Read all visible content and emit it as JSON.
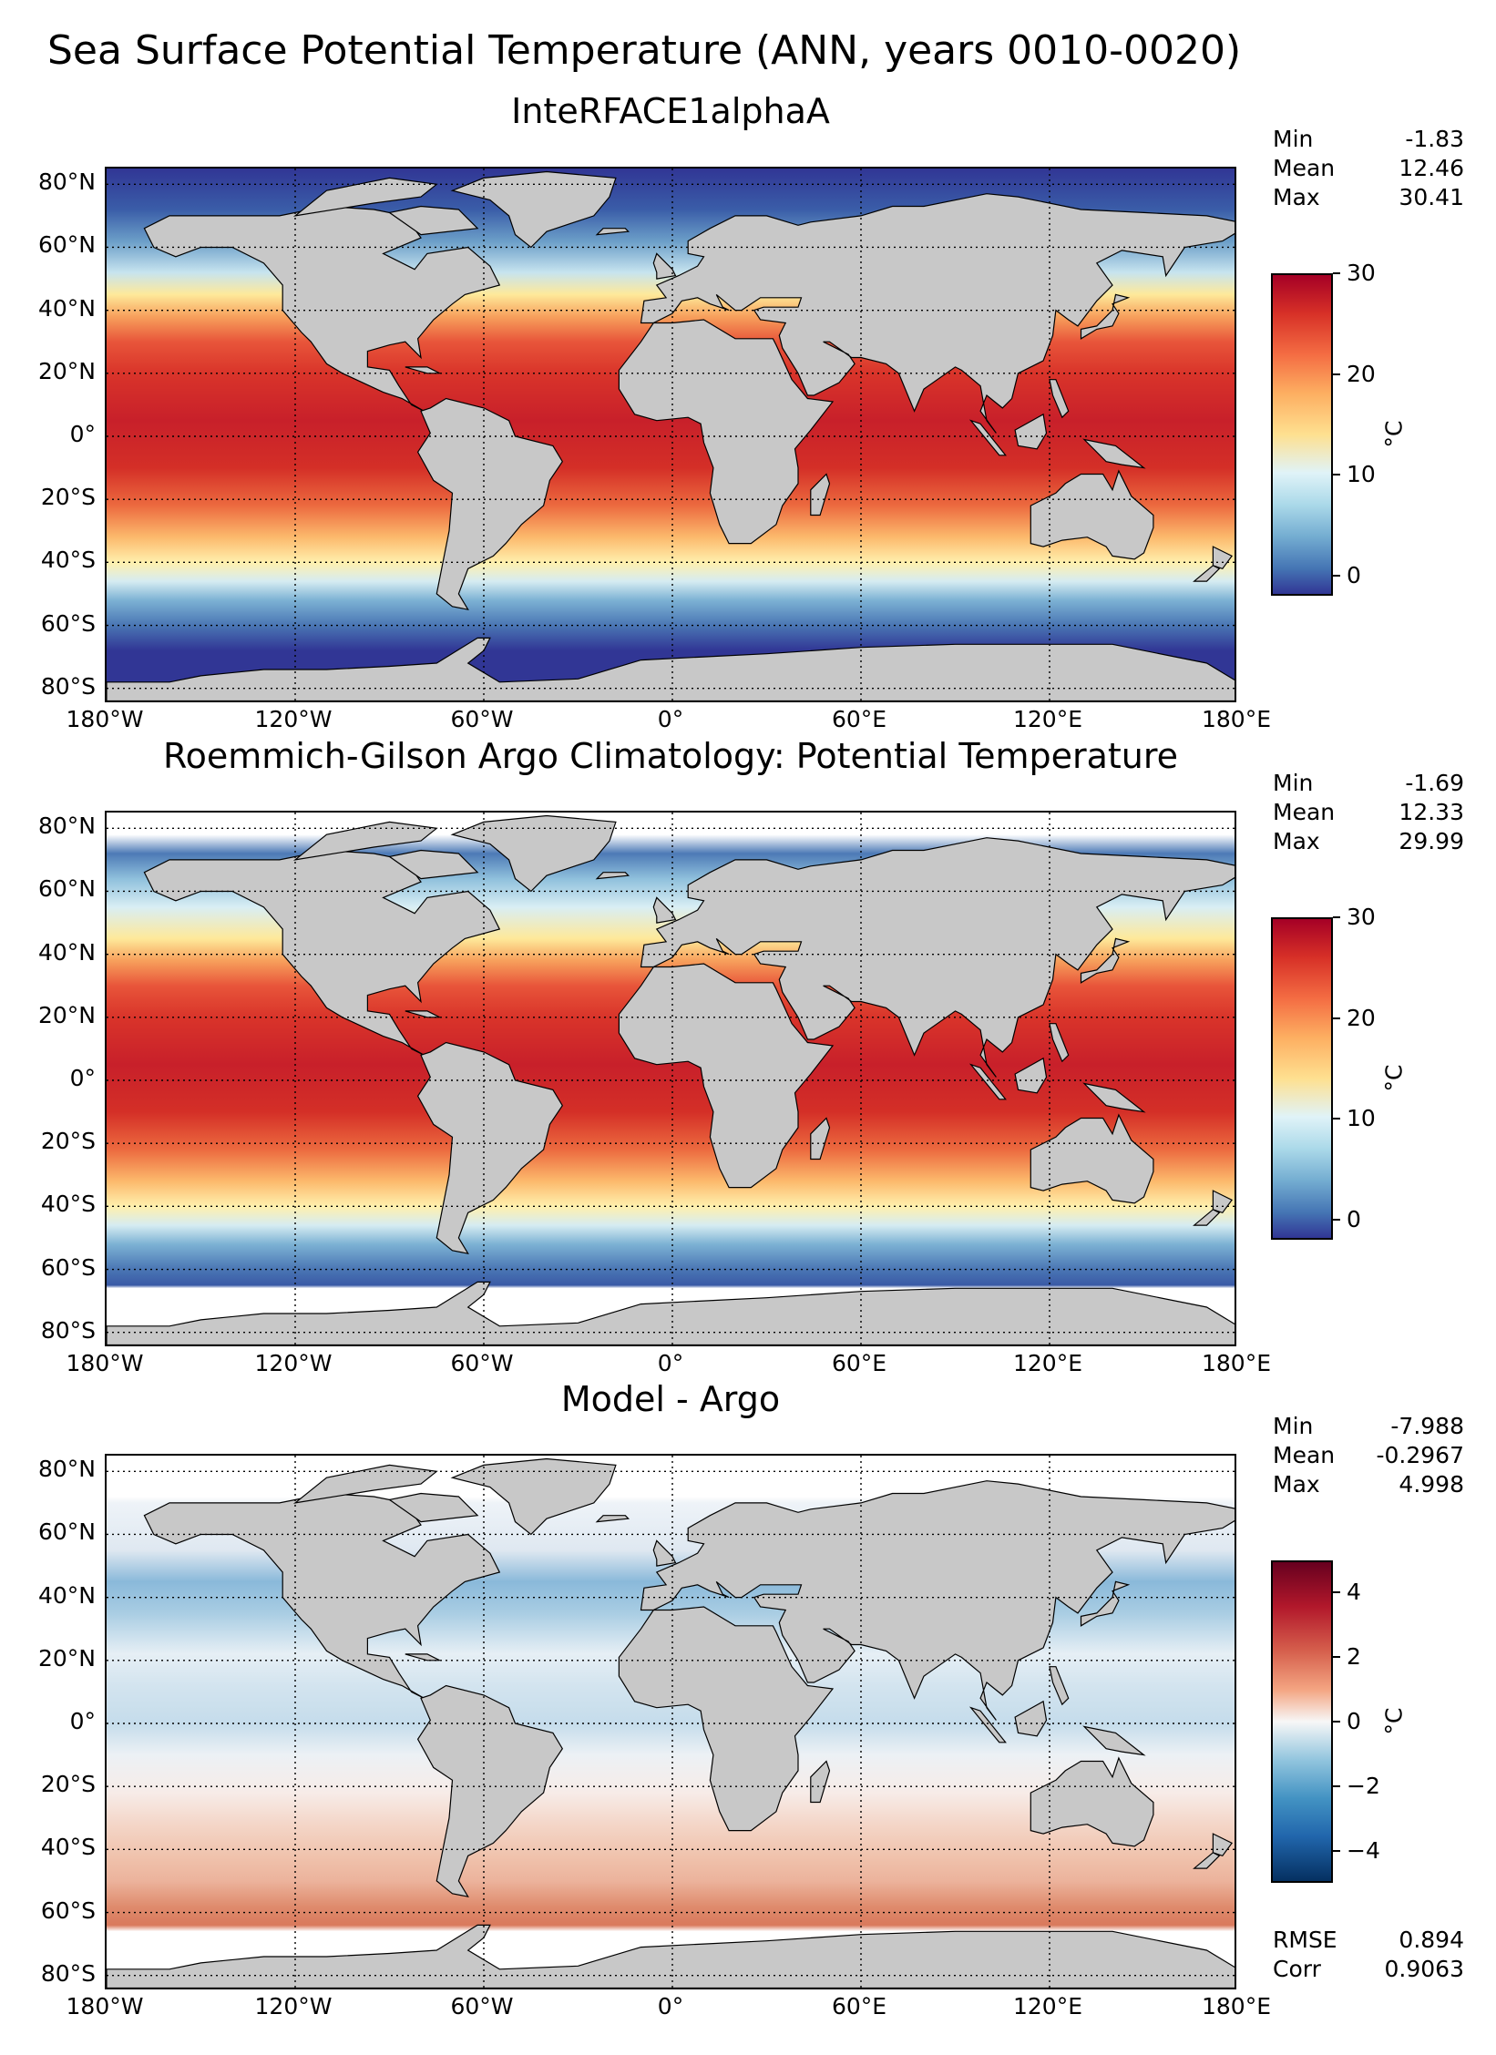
{
  "title": "Sea Surface Potential Temperature (ANN, years 0010-0020)",
  "lat_labels": [
    "80°N",
    "60°N",
    "40°N",
    "20°N",
    "0°",
    "20°S",
    "40°S",
    "60°S",
    "80°S"
  ],
  "lon_labels": [
    "180°W",
    "120°W",
    "60°W",
    "0°",
    "60°E",
    "120°E",
    "180°E"
  ],
  "colors": {
    "land": "#c8c8c8",
    "missing": "#ffffff",
    "grid": "#000000"
  },
  "panels": [
    {
      "subtitle": "InteRFACE1alphaA",
      "stats": [
        {
          "label": "Min",
          "value": "-1.83"
        },
        {
          "label": "Mean",
          "value": "12.46"
        },
        {
          "label": "Max",
          "value": "30.41"
        }
      ],
      "colorbar": {
        "ticks": [
          "30",
          "20",
          "10",
          "0"
        ],
        "unit": "°C",
        "colormap": "RdYlBu_r",
        "range": [
          -2,
          30
        ]
      },
      "extra": []
    },
    {
      "subtitle": "Roemmich-Gilson Argo Climatology: Potential Temperature",
      "stats": [
        {
          "label": "Min",
          "value": "-1.69"
        },
        {
          "label": "Mean",
          "value": "12.33"
        },
        {
          "label": "Max",
          "value": "29.99"
        }
      ],
      "colorbar": {
        "ticks": [
          "30",
          "20",
          "10",
          "0"
        ],
        "unit": "°C",
        "colormap": "RdYlBu_r",
        "range": [
          -2,
          30
        ]
      },
      "extra": []
    },
    {
      "subtitle": "Model - Argo",
      "stats": [
        {
          "label": "Min",
          "value": "-7.988"
        },
        {
          "label": "Mean",
          "value": "-0.2967"
        },
        {
          "label": "Max",
          "value": "4.998"
        }
      ],
      "colorbar": {
        "ticks": [
          "4",
          "2",
          "0",
          "−2",
          "−4"
        ],
        "unit": "°C",
        "colormap": "RdBu_r",
        "range": [
          -5,
          5
        ]
      },
      "extra": [
        {
          "label": "RMSE",
          "value": "0.894"
        },
        {
          "label": "Corr",
          "value": "0.9063"
        }
      ]
    }
  ]
}
